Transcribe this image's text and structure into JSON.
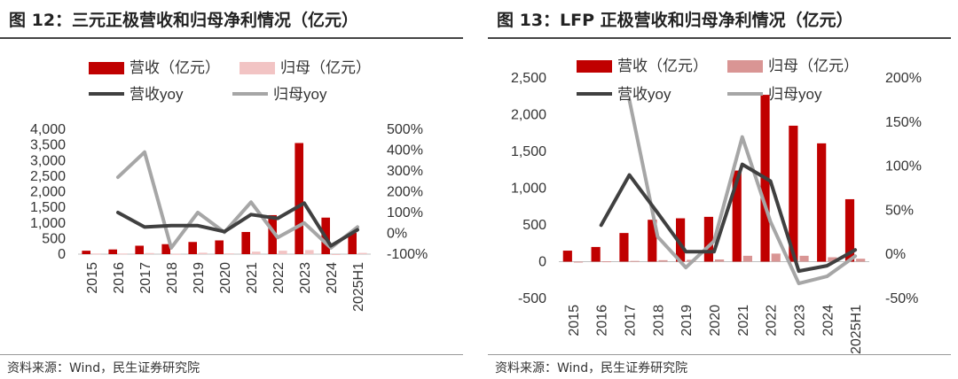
{
  "panels": [
    {
      "title": "图 12：三元正极营收和归母净利情况（亿元）",
      "source": "资料来源：Wind，民生证券研究院"
    },
    {
      "title": "图 13：LFP 正极营收和归母净利情况（亿元）",
      "source": "资料来源：Wind，民生证券研究院"
    }
  ],
  "colors": {
    "revenue_bar": "#c00000",
    "profit_bar_left": "#f2c4c4",
    "profit_bar_right": "#d99594",
    "revenue_yoy": "#404040",
    "profit_yoy": "#a6a6a6"
  },
  "chart_data": [
    {
      "type": "bar",
      "categories": [
        "2015",
        "2016",
        "2017",
        "2018",
        "2019",
        "2020",
        "2021",
        "2022",
        "2023",
        "2024",
        "2025H1"
      ],
      "series": [
        {
          "name": "营收（亿元）",
          "kind": "bar",
          "axis": "left",
          "values": [
            110,
            150,
            270,
            320,
            390,
            440,
            710,
            1250,
            3560,
            1170,
            680
          ]
        },
        {
          "name": "归母（亿元）",
          "kind": "bar",
          "axis": "left",
          "values": [
            20,
            20,
            35,
            10,
            45,
            25,
            80,
            110,
            130,
            -20,
            40
          ]
        },
        {
          "name": "营收yoy",
          "kind": "line",
          "axis": "right",
          "values": [
            null,
            1.0,
            0.3,
            0.37,
            0.37,
            0.08,
            0.9,
            0.72,
            1.45,
            -0.6,
            0.17
          ]
        },
        {
          "name": "归母yoy",
          "kind": "line",
          "axis": "right",
          "values": [
            null,
            2.7,
            3.9,
            -0.7,
            1.0,
            0.05,
            1.5,
            -0.2,
            0.5,
            -0.7,
            0.3
          ]
        }
      ],
      "left_axis": {
        "min": 0,
        "max": 4000,
        "ticks": [
          0,
          500,
          1000,
          1500,
          2000,
          2500,
          3000,
          3500,
          4000
        ],
        "tick_labels": [
          "0",
          "500",
          "1,000",
          "1,500",
          "2,000",
          "2,500",
          "3,000",
          "3,500",
          "4,000"
        ]
      },
      "right_axis": {
        "min": -1,
        "max": 5,
        "ticks": [
          -1,
          0,
          1,
          2,
          3,
          4,
          5
        ],
        "tick_labels": [
          "-100%",
          "0%",
          "100%",
          "200%",
          "300%",
          "400%",
          "500%"
        ]
      },
      "legend": [
        "营收（亿元）",
        "归母（亿元）",
        "营收yoy",
        "归母yoy"
      ],
      "legend_position": "top"
    },
    {
      "type": "bar",
      "categories": [
        "2015",
        "2016",
        "2017",
        "2018",
        "2019",
        "2020",
        "2021",
        "2022",
        "2023",
        "2024",
        "2025H1"
      ],
      "series": [
        {
          "name": "营收（亿元）",
          "kind": "bar",
          "axis": "left",
          "values": [
            150,
            200,
            390,
            570,
            590,
            610,
            1240,
            2270,
            1850,
            1610,
            850
          ]
        },
        {
          "name": "归母（亿元）",
          "kind": "bar",
          "axis": "left",
          "values": [
            -10,
            5,
            10,
            20,
            25,
            30,
            80,
            110,
            80,
            60,
            40
          ]
        },
        {
          "name": "营收yoy",
          "kind": "line",
          "axis": "right",
          "values": [
            null,
            0.33,
            0.9,
            0.47,
            0.03,
            0.03,
            1.02,
            0.83,
            -0.19,
            -0.13,
            0.05
          ]
        },
        {
          "name": "归母yoy",
          "kind": "line",
          "axis": "right",
          "values": [
            null,
            null,
            1.75,
            0.2,
            -0.15,
            0.15,
            1.33,
            0.37,
            -0.33,
            -0.25,
            -0.02
          ]
        }
      ],
      "left_axis": {
        "min": -500,
        "max": 2500,
        "ticks": [
          -500,
          0,
          500,
          1000,
          1500,
          2000,
          2500
        ],
        "tick_labels": [
          "-500",
          "0",
          "500",
          "1,000",
          "1,500",
          "2,000",
          "2,500"
        ]
      },
      "right_axis": {
        "min": -0.5,
        "max": 2,
        "ticks": [
          -0.5,
          0,
          0.5,
          1,
          1.5,
          2
        ],
        "tick_labels": [
          "-50%",
          "0%",
          "50%",
          "100%",
          "150%",
          "200%"
        ]
      },
      "legend": [
        "营收（亿元）",
        "归母（亿元）",
        "营收yoy",
        "归母yoy"
      ],
      "legend_position": "top"
    }
  ]
}
